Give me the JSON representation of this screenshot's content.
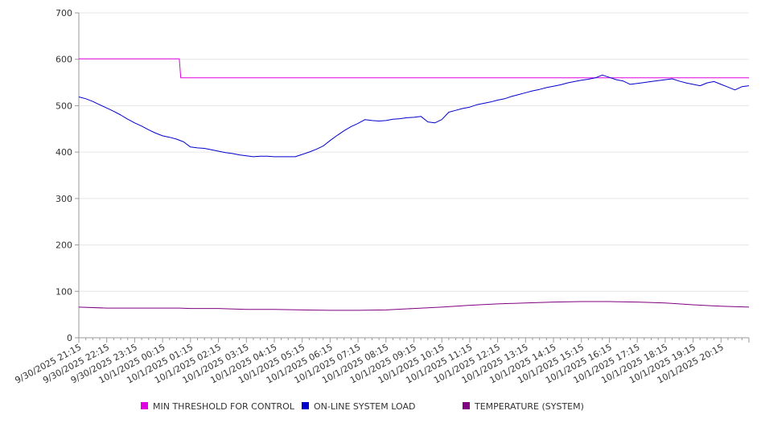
{
  "chart_data": {
    "type": "line",
    "x_tick_labels": [
      "9/30/2025 21:15",
      "9/30/2025 22:15",
      "9/30/2025 23:15",
      "10/1/2025 00:15",
      "10/1/2025 01:15",
      "10/1/2025 02:15",
      "10/1/2025 03:15",
      "10/1/2025 04:15",
      "10/1/2025 05:15",
      "10/1/2025 06:15",
      "10/1/2025 07:15",
      "10/1/2025 08:15",
      "10/1/2025 09:15",
      "10/1/2025 10:15",
      "10/1/2025 11:15",
      "10/1/2025 12:15",
      "10/1/2025 13:15",
      "10/1/2025 14:15",
      "10/1/2025 15:15",
      "10/1/2025 16:15",
      "10/1/2025 17:15",
      "10/1/2025 18:15",
      "10/1/2025 19:15",
      "10/1/2025 20:15"
    ],
    "y_ticks": [
      0,
      100,
      200,
      300,
      400,
      500,
      600,
      700
    ],
    "ylim": [
      0,
      700
    ],
    "grid": true,
    "legend_position": "bottom",
    "series": [
      {
        "name": "MIN THRESHOLD FOR CONTROL",
        "color": "#e000e0",
        "points": [
          [
            0,
            601
          ],
          [
            3.6,
            601
          ],
          [
            3.65,
            560
          ],
          [
            24,
            560
          ]
        ]
      },
      {
        "name": "ON-LINE SYSTEM LOAD",
        "color": "#0000cc",
        "points": [
          [
            0,
            519
          ],
          [
            0.25,
            515
          ],
          [
            0.5,
            509
          ],
          [
            0.75,
            502
          ],
          [
            1,
            495
          ],
          [
            1.25,
            488
          ],
          [
            1.5,
            480
          ],
          [
            1.75,
            471
          ],
          [
            2,
            463
          ],
          [
            2.25,
            456
          ],
          [
            2.5,
            448
          ],
          [
            2.75,
            441
          ],
          [
            3,
            435
          ],
          [
            3.25,
            432
          ],
          [
            3.5,
            428
          ],
          [
            3.75,
            422
          ],
          [
            4,
            411
          ],
          [
            4.25,
            409
          ],
          [
            4.5,
            408
          ],
          [
            4.75,
            405
          ],
          [
            5,
            402
          ],
          [
            5.25,
            399
          ],
          [
            5.5,
            397
          ],
          [
            5.75,
            394
          ],
          [
            6,
            392
          ],
          [
            6.25,
            390
          ],
          [
            6.5,
            391
          ],
          [
            6.75,
            391
          ],
          [
            7,
            390
          ],
          [
            7.25,
            390
          ],
          [
            7.5,
            390
          ],
          [
            7.75,
            390
          ],
          [
            8,
            395
          ],
          [
            8.25,
            400
          ],
          [
            8.5,
            406
          ],
          [
            8.75,
            413
          ],
          [
            9,
            425
          ],
          [
            9.25,
            436
          ],
          [
            9.5,
            446
          ],
          [
            9.75,
            455
          ],
          [
            10,
            462
          ],
          [
            10.25,
            470
          ],
          [
            10.5,
            468
          ],
          [
            10.75,
            467
          ],
          [
            11,
            468
          ],
          [
            11.25,
            471
          ],
          [
            11.5,
            472
          ],
          [
            11.75,
            474
          ],
          [
            12,
            475
          ],
          [
            12.25,
            477
          ],
          [
            12.5,
            465
          ],
          [
            12.75,
            463
          ],
          [
            13,
            470
          ],
          [
            13.25,
            486
          ],
          [
            13.5,
            490
          ],
          [
            13.75,
            494
          ],
          [
            14,
            497
          ],
          [
            14.25,
            502
          ],
          [
            14.5,
            505
          ],
          [
            14.75,
            508
          ],
          [
            15,
            512
          ],
          [
            15.25,
            515
          ],
          [
            15.5,
            520
          ],
          [
            15.75,
            524
          ],
          [
            16,
            528
          ],
          [
            16.25,
            532
          ],
          [
            16.5,
            535
          ],
          [
            16.75,
            539
          ],
          [
            17,
            542
          ],
          [
            17.25,
            545
          ],
          [
            17.5,
            549
          ],
          [
            17.75,
            552
          ],
          [
            18,
            555
          ],
          [
            18.25,
            557
          ],
          [
            18.5,
            560
          ],
          [
            18.75,
            566
          ],
          [
            19,
            561
          ],
          [
            19.25,
            556
          ],
          [
            19.5,
            553
          ],
          [
            19.75,
            546
          ],
          [
            20,
            548
          ],
          [
            20.25,
            550
          ],
          [
            20.5,
            552
          ],
          [
            20.75,
            554
          ],
          [
            21,
            556
          ],
          [
            21.25,
            558
          ],
          [
            21.5,
            553
          ],
          [
            21.75,
            549
          ],
          [
            22,
            546
          ],
          [
            22.25,
            543
          ],
          [
            22.5,
            549
          ],
          [
            22.75,
            552
          ],
          [
            23,
            546
          ],
          [
            23.25,
            540
          ],
          [
            23.5,
            534
          ],
          [
            23.75,
            541
          ],
          [
            24,
            543
          ]
        ]
      },
      {
        "name": "TEMPERATURE (SYSTEM)",
        "color": "#800080",
        "points": [
          [
            0,
            66
          ],
          [
            1,
            64
          ],
          [
            2,
            64
          ],
          [
            3,
            64
          ],
          [
            3.6,
            64
          ],
          [
            4,
            63
          ],
          [
            5,
            63
          ],
          [
            6,
            61
          ],
          [
            7,
            61
          ],
          [
            8,
            60
          ],
          [
            9,
            59
          ],
          [
            10,
            59
          ],
          [
            11,
            60
          ],
          [
            12,
            63
          ],
          [
            13,
            66
          ],
          [
            14,
            70
          ],
          [
            15,
            73
          ],
          [
            16,
            75
          ],
          [
            17,
            77
          ],
          [
            18,
            78
          ],
          [
            19,
            78
          ],
          [
            20,
            77
          ],
          [
            21,
            75
          ],
          [
            22,
            71
          ],
          [
            23,
            68
          ],
          [
            24,
            66
          ]
        ]
      }
    ]
  }
}
